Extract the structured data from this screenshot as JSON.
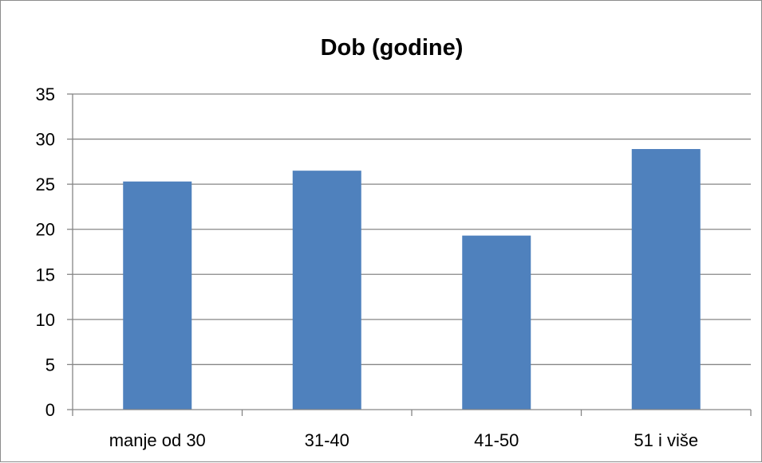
{
  "chart_data": {
    "type": "bar",
    "title": "Dob (godine)",
    "categories": [
      "manje od 30",
      "31-40",
      "41-50",
      "51 i više"
    ],
    "values": [
      25.3,
      26.5,
      19.3,
      28.9
    ],
    "ylim": [
      0,
      35
    ],
    "yticks": [
      0,
      5,
      10,
      15,
      20,
      25,
      30,
      35
    ],
    "grid": true,
    "legend": "none",
    "bar_color": "#4f81bd",
    "grid_color": "#868686",
    "axis_color": "#868686"
  }
}
